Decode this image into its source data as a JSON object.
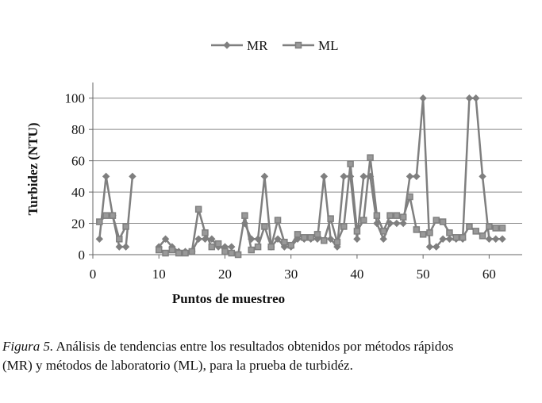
{
  "chart_data": {
    "type": "line",
    "x": [
      1,
      2,
      3,
      4,
      5,
      6,
      7,
      8,
      9,
      10,
      11,
      12,
      13,
      14,
      15,
      16,
      17,
      18,
      19,
      20,
      21,
      22,
      23,
      24,
      25,
      26,
      27,
      28,
      29,
      30,
      31,
      32,
      33,
      34,
      35,
      36,
      37,
      38,
      39,
      40,
      41,
      42,
      43,
      44,
      45,
      46,
      47,
      48,
      49,
      50,
      51,
      52,
      53,
      54,
      55,
      56,
      57,
      58,
      59,
      60,
      61,
      62
    ],
    "series": [
      {
        "name": "MR",
        "color": "#7f7f7f",
        "marker": "diamond",
        "values": [
          10,
          50,
          25,
          5,
          5,
          50,
          null,
          null,
          null,
          5,
          10,
          5,
          2,
          2,
          2,
          10,
          10,
          10,
          5,
          5,
          5,
          null,
          20,
          10,
          10,
          50,
          5,
          10,
          5,
          5,
          10,
          10,
          10,
          10,
          50,
          10,
          5,
          50,
          50,
          10,
          50,
          50,
          20,
          10,
          20,
          20,
          20,
          50,
          50,
          100,
          5,
          5,
          10,
          10,
          10,
          10,
          100,
          100,
          50,
          10,
          10,
          10
        ]
      },
      {
        "name": "ML",
        "color": "#7f7f7f",
        "marker": "square",
        "values": [
          21,
          25,
          25,
          10,
          18,
          null,
          null,
          null,
          null,
          3,
          1,
          3,
          1,
          1,
          2,
          29,
          14,
          5,
          7,
          2,
          1,
          0,
          25,
          3,
          5,
          18,
          5,
          22,
          8,
          6,
          13,
          11,
          11,
          13,
          9,
          23,
          8,
          18,
          58,
          15,
          22,
          62,
          25,
          15,
          25,
          25,
          24,
          37,
          16,
          13,
          14,
          22,
          21,
          14,
          11,
          11,
          18,
          15,
          12,
          18,
          17,
          17
        ]
      }
    ],
    "xlabel": "Puntos de muestreo",
    "ylabel": "Turbidez (NTU)",
    "xlim": [
      0,
      65
    ],
    "ylim": [
      0,
      110
    ],
    "xticks": [
      0,
      10,
      20,
      30,
      40,
      50,
      60
    ],
    "yticks": [
      0,
      20,
      40,
      60,
      80,
      100
    ],
    "grid": true,
    "legend": "top"
  },
  "caption": {
    "label": "Figura 5.",
    "lines": [
      " Análisis de tendencias entre los resultados obtenidos por métodos rápidos",
      "(MR) y métodos de laboratorio (ML), para la prueba de turbidéz."
    ]
  }
}
